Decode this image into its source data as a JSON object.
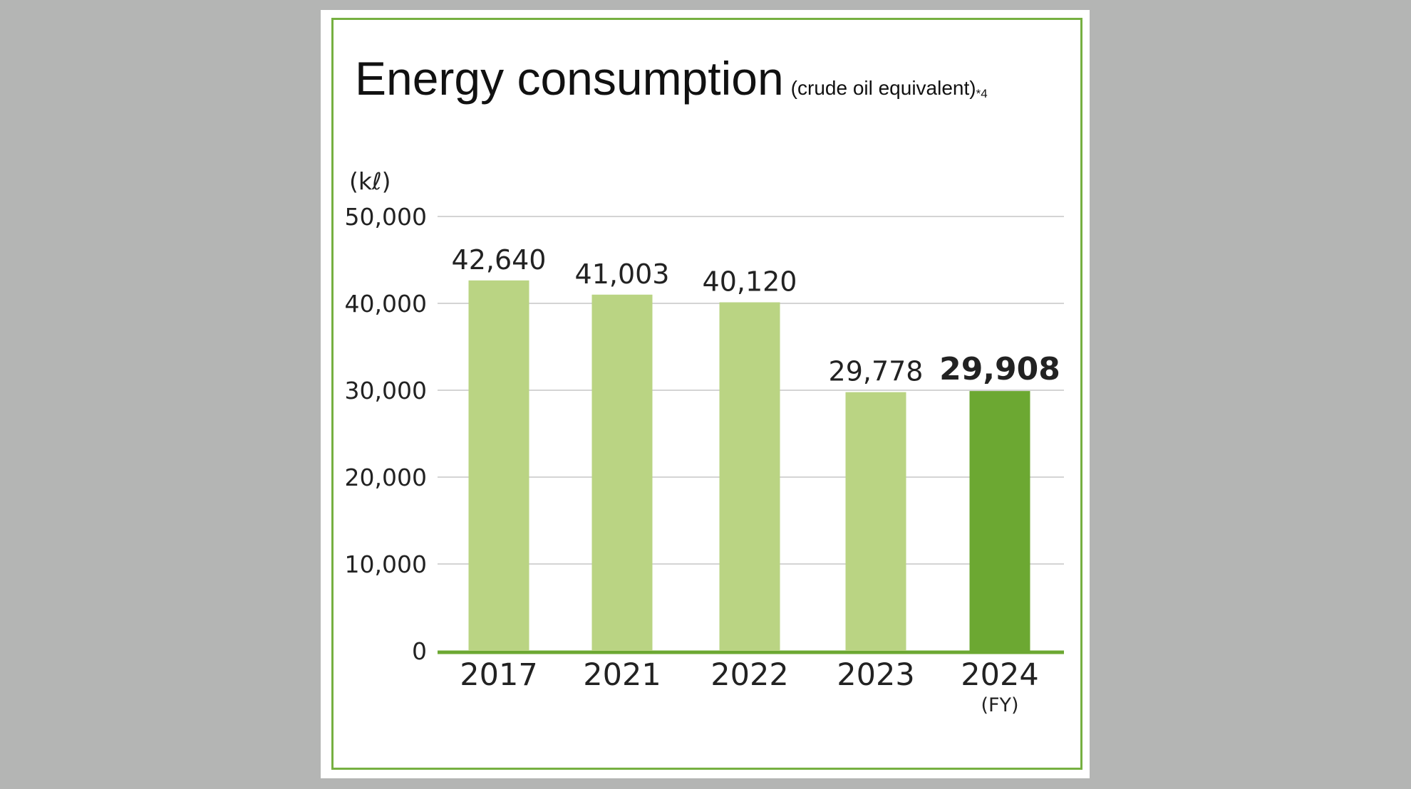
{
  "chart_data": {
    "type": "bar",
    "title": "Energy consumption",
    "subtitle": "(crude oil equivalent)",
    "footnote_marker": "*4",
    "ylabel": "(kℓ)",
    "xlabel": "(FY)",
    "categories": [
      "2017",
      "2021",
      "2022",
      "2023",
      "2024"
    ],
    "values": [
      42640,
      41003,
      40120,
      29778,
      29908
    ],
    "value_labels": [
      "42,640",
      "41,003",
      "40,120",
      "29,778",
      "29,908"
    ],
    "highlight_index": 4,
    "ylim": [
      0,
      50000
    ],
    "yticks": [
      0,
      10000,
      20000,
      30000,
      40000,
      50000
    ],
    "ytick_labels": [
      "0",
      "10,000",
      "20,000",
      "30,000",
      "40,000",
      "50,000"
    ],
    "grid": true,
    "colors": {
      "bar": "#bad483",
      "highlight": "#6ca832",
      "frame": "#76b041",
      "grid": "#d4d4d4",
      "baseline": "#6ca832"
    }
  }
}
